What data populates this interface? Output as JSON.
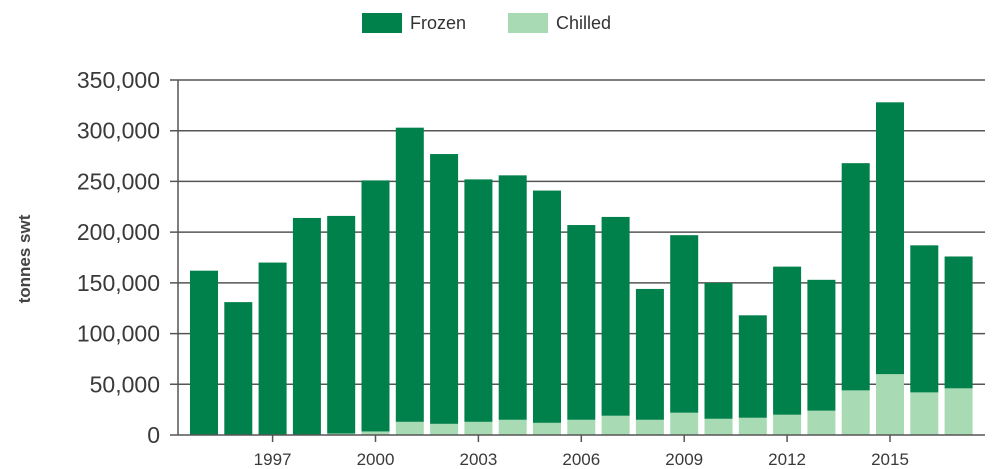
{
  "chart_data": {
    "type": "bar",
    "stacked": true,
    "categories": [
      "1995",
      "1996",
      "1997",
      "1998",
      "1999",
      "2000",
      "2001",
      "2002",
      "2003",
      "2004",
      "2005",
      "2006",
      "2007",
      "2008",
      "2009",
      "2010",
      "2011",
      "2012",
      "2013",
      "2014",
      "2015",
      "2016",
      "2017"
    ],
    "xtick_labels": [
      "1997",
      "2000",
      "2003",
      "2006",
      "2009",
      "2012",
      "2015"
    ],
    "series": [
      {
        "name": "Chilled",
        "color": "#a8dbb4",
        "values": [
          0,
          0,
          0,
          0,
          1500,
          3500,
          13000,
          11000,
          13000,
          15000,
          12000,
          15000,
          19000,
          15000,
          22000,
          16000,
          17000,
          20000,
          24000,
          44000,
          60000,
          42000,
          46000
        ]
      },
      {
        "name": "Frozen",
        "color": "#00804a",
        "values": [
          162000,
          131000,
          170000,
          214000,
          214500,
          247500,
          290000,
          266000,
          239000,
          241000,
          229000,
          192000,
          196000,
          129000,
          175000,
          134000,
          101000,
          146000,
          129000,
          224000,
          268000,
          145000,
          130000
        ]
      }
    ],
    "legend": [
      {
        "label": "Frozen",
        "color": "#00804a"
      },
      {
        "label": "Chilled",
        "color": "#a8dbb4"
      }
    ],
    "ylabel": "tonnes swt",
    "ylim": [
      0,
      350000
    ],
    "yticks": [
      0,
      50000,
      100000,
      150000,
      200000,
      250000,
      300000,
      350000
    ],
    "ytick_labels": [
      "0",
      "50,000",
      "100,000",
      "150,000",
      "200,000",
      "250,000",
      "300,000",
      "350,000"
    ],
    "legend_position": "top-center",
    "grid": true
  }
}
